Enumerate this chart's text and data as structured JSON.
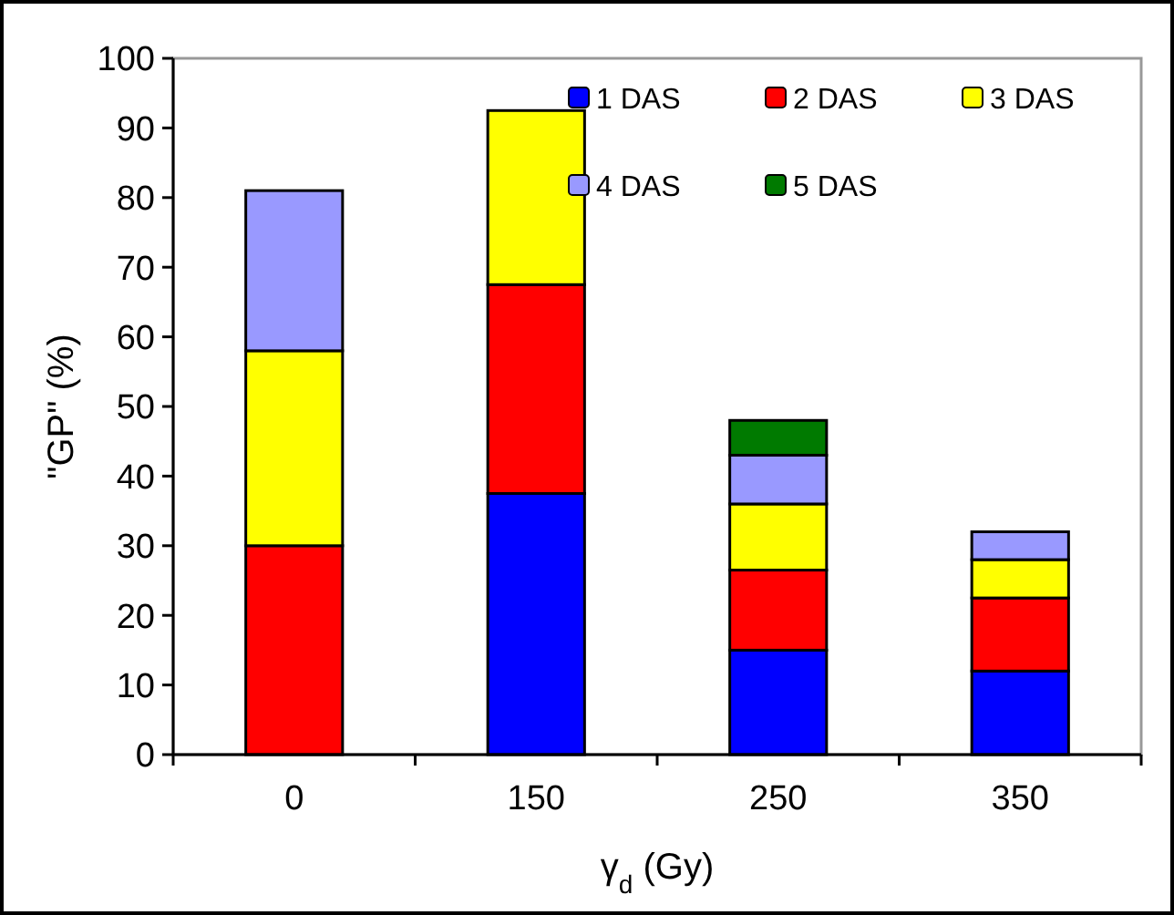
{
  "chart_data": {
    "type": "bar",
    "stacked": true,
    "xlabel": "γ$_{d}$ (Gy)",
    "ylabel": "\"GP\" (%)",
    "categories": [
      "0",
      "150",
      "250",
      "350"
    ],
    "series": [
      {
        "name": "1 DAS",
        "color": "#0000ff",
        "values": [
          0,
          37.5,
          15,
          12
        ]
      },
      {
        "name": "2 DAS",
        "color": "#ff0000",
        "values": [
          30,
          30,
          11.5,
          10.5
        ]
      },
      {
        "name": "3 DAS",
        "color": "#ffff00",
        "values": [
          28,
          25,
          9.5,
          5.5
        ]
      },
      {
        "name": "4 DAS",
        "color": "#9999ff",
        "values": [
          23,
          0,
          7,
          4
        ]
      },
      {
        "name": "5 DAS",
        "color": "#007a00",
        "values": [
          0,
          0,
          5,
          0
        ]
      }
    ],
    "ylim": [
      0,
      100
    ],
    "yticks": [
      0,
      10,
      20,
      30,
      40,
      50,
      60,
      70,
      80,
      90,
      100
    ],
    "grid": false,
    "legend": "top right"
  }
}
